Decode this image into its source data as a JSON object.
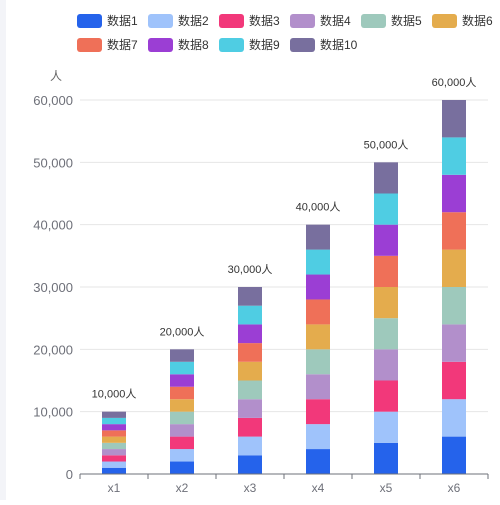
{
  "chart_data": {
    "type": "bar",
    "stacked": true,
    "categories": [
      "x1",
      "x2",
      "x3",
      "x4",
      "x5",
      "x6"
    ],
    "ylabel": "人",
    "ylim": [
      0,
      60000
    ],
    "yticks": [
      "0",
      "10,000",
      "20,000",
      "30,000",
      "40,000",
      "50,000",
      "60,000"
    ],
    "ytick_values": [
      0,
      10000,
      20000,
      30000,
      40000,
      50000,
      60000
    ],
    "totals_labels": [
      "10,000人",
      "20,000人",
      "30,000人",
      "40,000人",
      "50,000人",
      "60,000人"
    ],
    "legend_position": "top",
    "grid": true,
    "series": [
      {
        "name": "数据1",
        "color": "#2563eb",
        "values": [
          1000,
          2000,
          3000,
          4000,
          5000,
          6000
        ]
      },
      {
        "name": "数据2",
        "color": "#9fc3fb",
        "values": [
          1000,
          2000,
          3000,
          4000,
          5000,
          6000
        ]
      },
      {
        "name": "数据3",
        "color": "#f2387a",
        "values": [
          1000,
          2000,
          3000,
          4000,
          5000,
          6000
        ]
      },
      {
        "name": "数据4",
        "color": "#b28fcb",
        "values": [
          1000,
          2000,
          3000,
          4000,
          5000,
          6000
        ]
      },
      {
        "name": "数据5",
        "color": "#9ec9bc",
        "values": [
          1000,
          2000,
          3000,
          4000,
          5000,
          6000
        ]
      },
      {
        "name": "数据6",
        "color": "#e4ac4d",
        "values": [
          1000,
          2000,
          3000,
          4000,
          5000,
          6000
        ]
      },
      {
        "name": "数据7",
        "color": "#ef7058",
        "values": [
          1000,
          2000,
          3000,
          4000,
          5000,
          6000
        ]
      },
      {
        "name": "数据8",
        "color": "#9b3ed4",
        "values": [
          1000,
          2000,
          3000,
          4000,
          5000,
          6000
        ]
      },
      {
        "name": "数据9",
        "color": "#4fcde3",
        "values": [
          1000,
          2000,
          3000,
          4000,
          5000,
          6000
        ]
      },
      {
        "name": "数据10",
        "color": "#786f9e",
        "values": [
          1000,
          2000,
          3000,
          4000,
          5000,
          6000
        ]
      }
    ]
  }
}
